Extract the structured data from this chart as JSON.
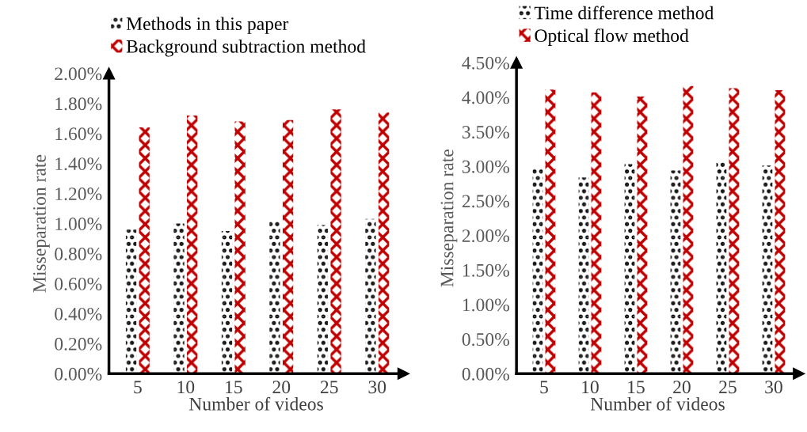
{
  "chart_data": [
    {
      "type": "bar",
      "xlabel": "Number of videos",
      "ylabel": "Misseparation rate",
      "categories": [
        "5",
        "10",
        "15",
        "20",
        "25",
        "30"
      ],
      "series": [
        {
          "name": "Methods in this paper",
          "color": "#000000",
          "values": [
            0.96,
            1.0,
            0.95,
            1.02,
            0.99,
            1.03
          ]
        },
        {
          "name": "Background subtraction method",
          "color": "#c00000",
          "values": [
            1.64,
            1.72,
            1.68,
            1.69,
            1.76,
            1.74
          ]
        }
      ],
      "ylim": [
        0,
        2.0
      ],
      "yticks": [
        {
          "value": 0,
          "label": "0.00%"
        },
        {
          "value": 0.2,
          "label": "0.20%"
        },
        {
          "value": 0.4,
          "label": "0.40%"
        },
        {
          "value": 0.6,
          "label": "0.60%"
        },
        {
          "value": 0.8,
          "label": "0.80%"
        },
        {
          "value": 1.0,
          "label": "1.00%"
        },
        {
          "value": 1.2,
          "label": "1.20%"
        },
        {
          "value": 1.4,
          "label": "1.40%"
        },
        {
          "value": 1.6,
          "label": "1.60%"
        },
        {
          "value": 1.8,
          "label": "1.80%"
        },
        {
          "value": 2.0,
          "label": "2.00%"
        }
      ],
      "grid": false,
      "legend": "top left"
    },
    {
      "type": "bar",
      "xlabel": "Number of videos",
      "ylabel": "Misseparation rate",
      "categories": [
        "5",
        "10",
        "15",
        "20",
        "25",
        "30"
      ],
      "series": [
        {
          "name": "Time difference method",
          "color": "#000000",
          "values": [
            2.97,
            2.84,
            3.03,
            2.94,
            3.06,
            3.01
          ]
        },
        {
          "name": "Optical flow method",
          "color": "#c00000",
          "values": [
            4.11,
            4.07,
            4.01,
            4.16,
            4.13,
            4.1
          ]
        }
      ],
      "ylim": [
        0,
        4.5
      ],
      "yticks": [
        {
          "value": 0,
          "label": "0.00%"
        },
        {
          "value": 0.5,
          "label": "0.50%"
        },
        {
          "value": 1.0,
          "label": "1.00%"
        },
        {
          "value": 1.5,
          "label": "1.50%"
        },
        {
          "value": 2.0,
          "label": "2.00%"
        },
        {
          "value": 2.5,
          "label": "2.50%"
        },
        {
          "value": 3.0,
          "label": "3.00%"
        },
        {
          "value": 3.5,
          "label": "3.50%"
        },
        {
          "value": 4.0,
          "label": "4.00%"
        },
        {
          "value": 4.5,
          "label": "4.50%"
        }
      ],
      "grid": false,
      "legend": "top left"
    }
  ]
}
